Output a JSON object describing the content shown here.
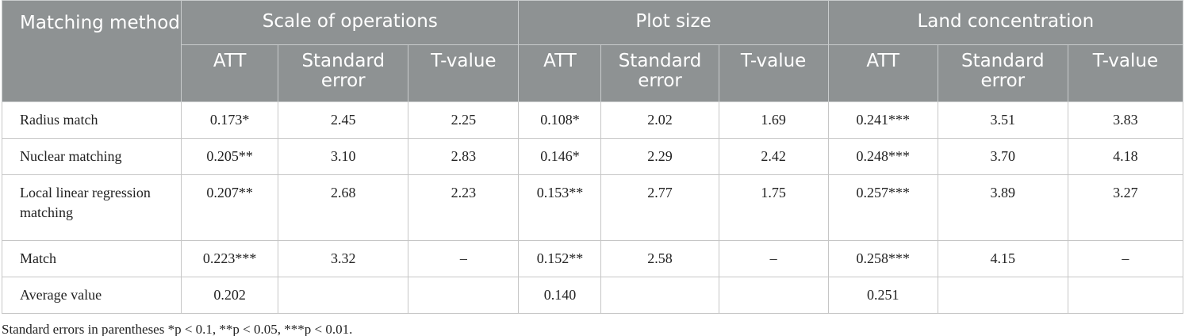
{
  "header": {
    "corner": "Matching method",
    "groups": [
      "Scale of operations",
      "Plot size",
      "Land concentration"
    ],
    "subheaders": [
      "ATT",
      "Standard error",
      "T-value",
      "ATT",
      "Standard error",
      "T-value",
      "ATT",
      "Standard error",
      "T-value"
    ]
  },
  "table": {
    "rows": [
      {
        "label": "Radius match",
        "cells": [
          "0.173*",
          "2.45",
          "2.25",
          "0.108*",
          "2.02",
          "1.69",
          "0.241***",
          "3.51",
          "3.83"
        ]
      },
      {
        "label": "Nuclear matching",
        "cells": [
          "0.205**",
          "3.10",
          "2.83",
          "0.146*",
          "2.29",
          "2.42",
          "0.248***",
          "3.70",
          "4.18"
        ]
      },
      {
        "label": "Local linear regression matching",
        "cells": [
          "0.207**",
          "2.68",
          "2.23",
          "0.153**",
          "2.77",
          "1.75",
          "0.257***",
          "3.89",
          "3.27"
        ]
      },
      {
        "label": "Match",
        "cells": [
          "0.223***",
          "3.32",
          "–",
          "0.152**",
          "2.58",
          "–",
          "0.258***",
          "4.15",
          "–"
        ]
      },
      {
        "label": "Average value",
        "cells": [
          "0.202",
          null,
          null,
          "0.140",
          null,
          null,
          "0.251",
          null,
          null
        ]
      }
    ]
  },
  "footnote": "Standard errors in parentheses *p < 0.1, **p < 0.05, ***p < 0.01."
}
